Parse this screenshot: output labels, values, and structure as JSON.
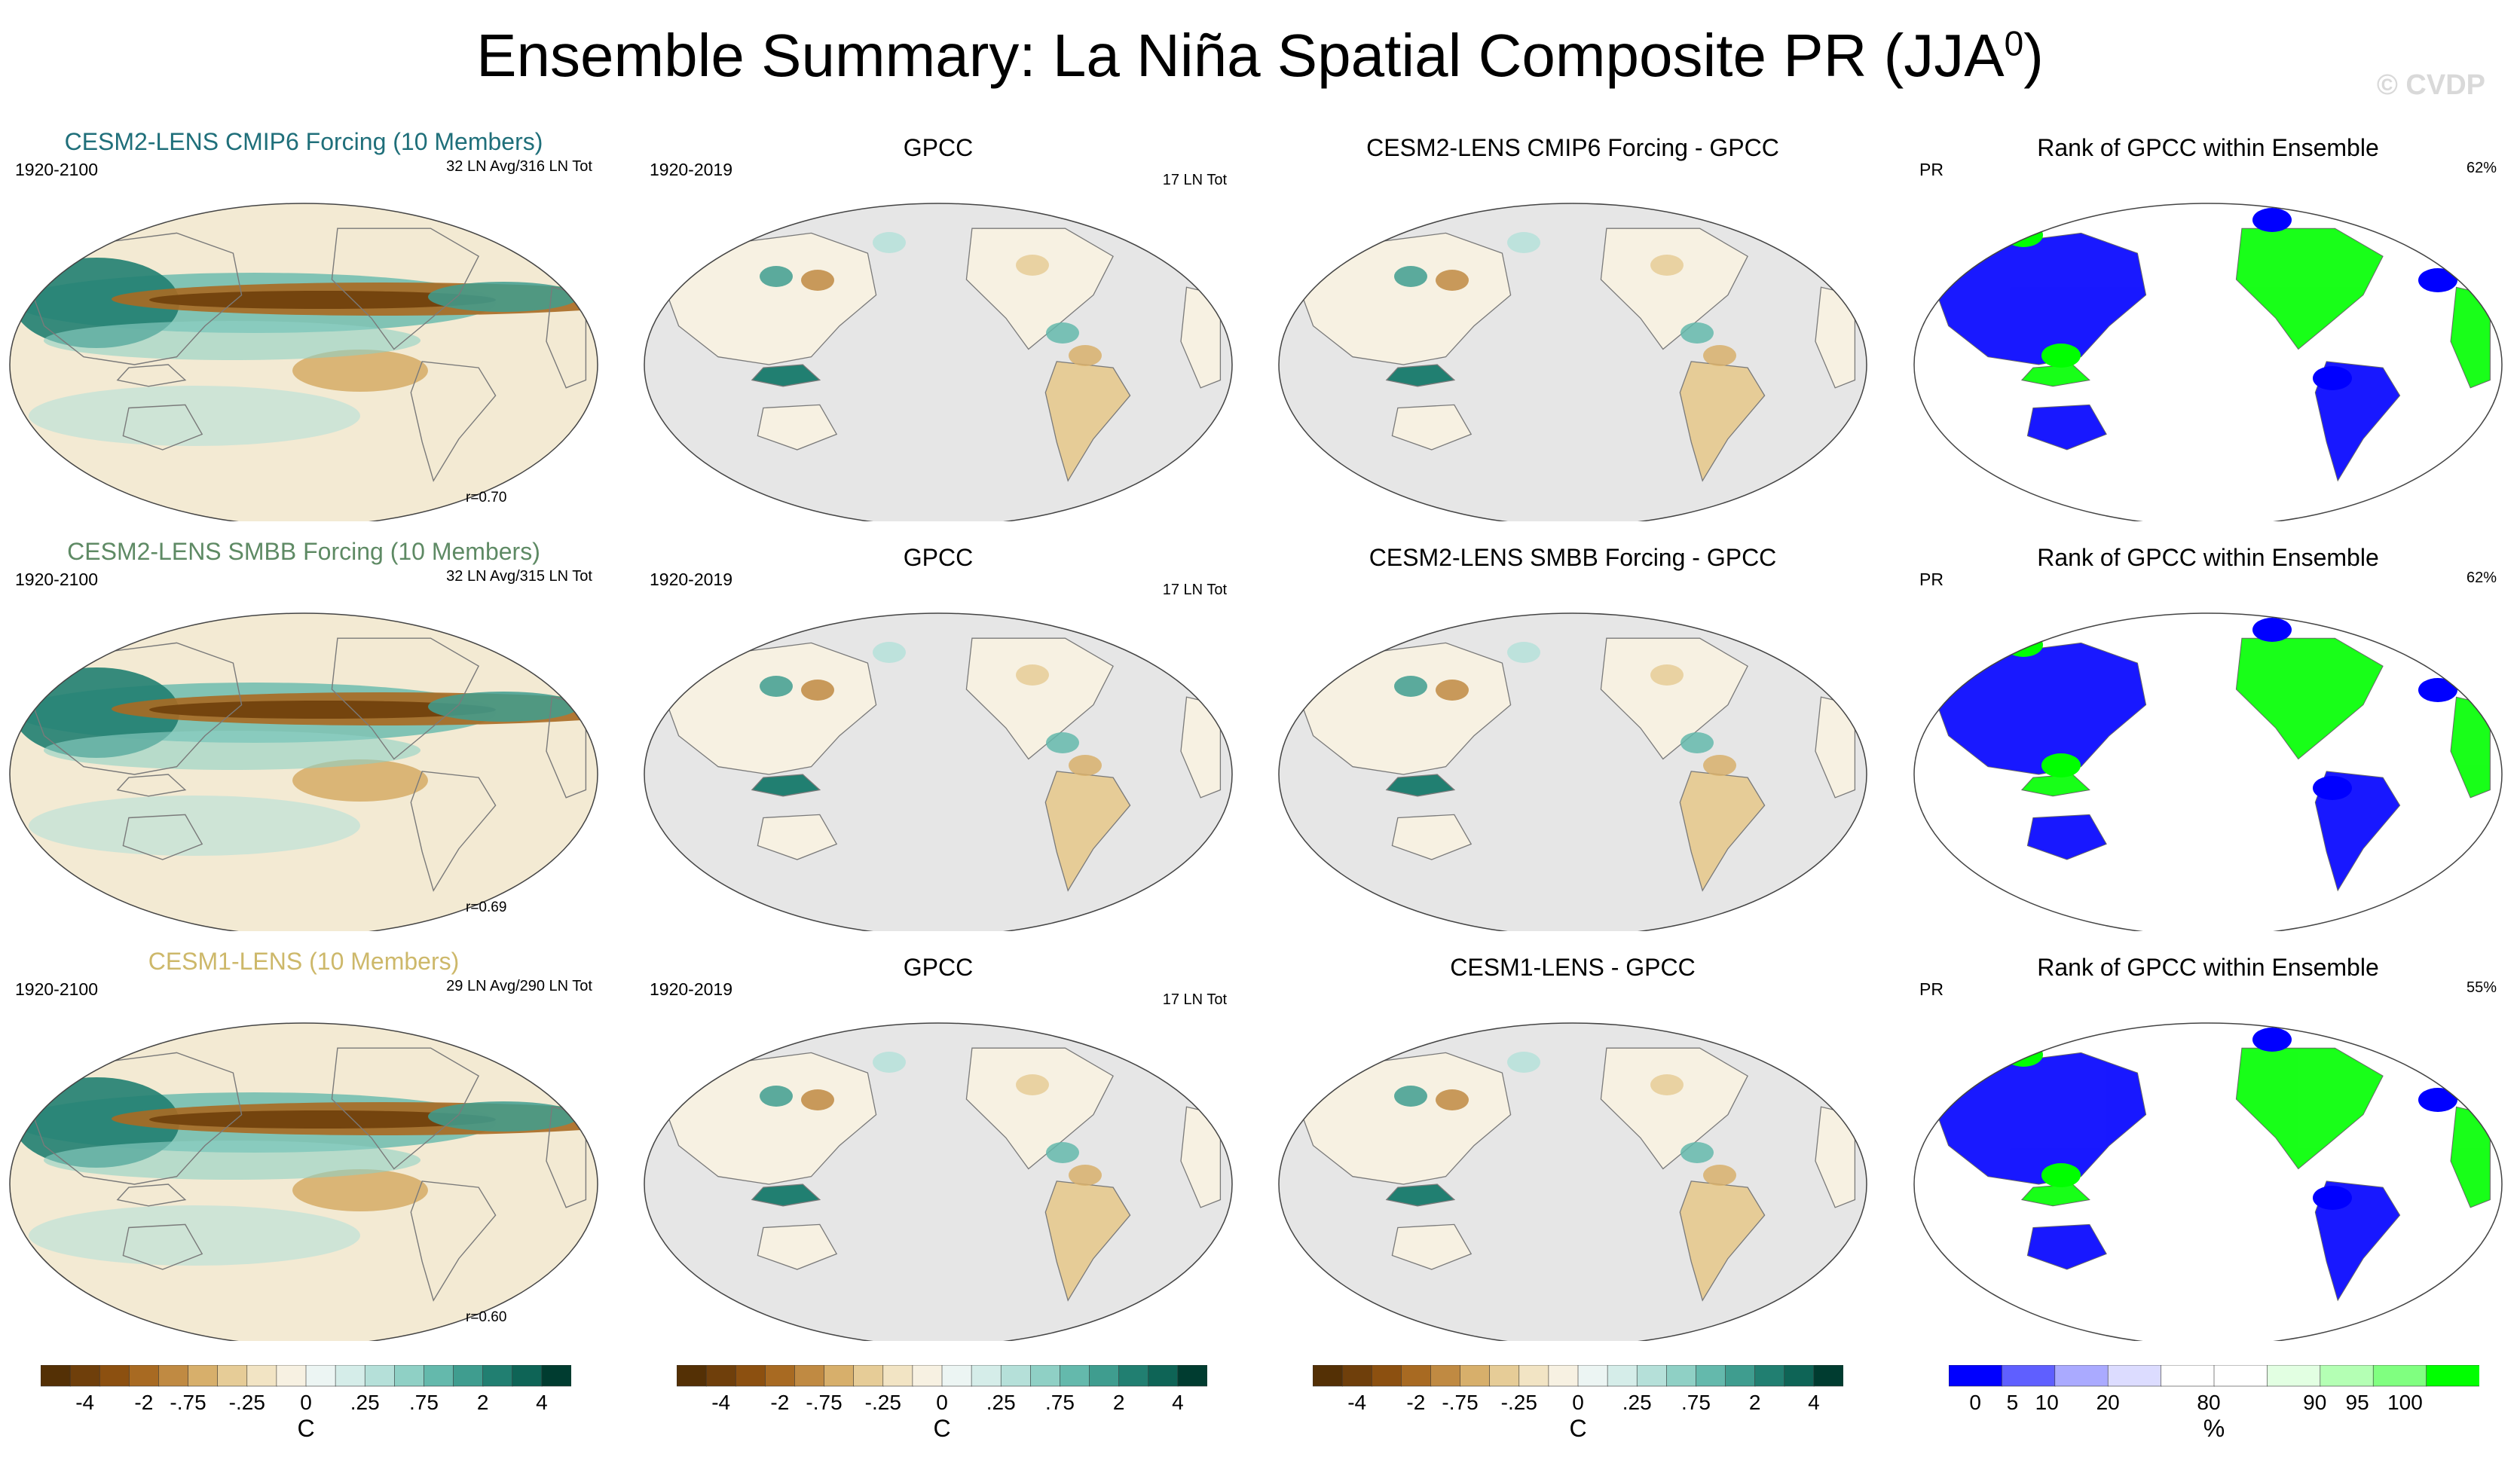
{
  "title": "Ensemble Summary: La Niña Spatial Composite PR (JJA",
  "title_sup": "0",
  "title_close": ")",
  "watermark": "© CVDP",
  "chart_data": {
    "type": "map-panels",
    "variable": "PR",
    "season": "JJA",
    "rows": [
      {
        "model": {
          "title": "CESM2-LENS CMIP6 Forcing (10 Members)",
          "title_color": "#1f6f7a",
          "years": "1920-2100",
          "info": "32 LN Avg/316 LN Tot",
          "pattern_corr": "r=0.70"
        },
        "obs": {
          "title": "GPCC",
          "years": "1920-2019",
          "info": "17 LN Tot"
        },
        "diff": {
          "title": "CESM2-LENS CMIP6 Forcing - GPCC"
        },
        "rank": {
          "title": "Rank of GPCC within Ensemble",
          "var": "PR",
          "percent": "62%"
        }
      },
      {
        "model": {
          "title": "CESM2-LENS SMBB Forcing (10 Members)",
          "title_color": "#5e8a64",
          "years": "1920-2100",
          "info": "32 LN Avg/315 LN Tot",
          "pattern_corr": "r=0.69"
        },
        "obs": {
          "title": "GPCC",
          "years": "1920-2019",
          "info": "17 LN Tot"
        },
        "diff": {
          "title": "CESM2-LENS SMBB Forcing - GPCC"
        },
        "rank": {
          "title": "Rank of GPCC within Ensemble",
          "var": "PR",
          "percent": "62%"
        }
      },
      {
        "model": {
          "title": "CESM1-LENS (10 Members)",
          "title_color": "#cdb86a",
          "years": "1920-2100",
          "info": "29 LN Avg/290 LN Tot",
          "pattern_corr": "r=0.60"
        },
        "obs": {
          "title": "GPCC",
          "years": "1920-2019",
          "info": "17 LN Tot"
        },
        "diff": {
          "title": "CESM1-LENS - GPCC"
        },
        "rank": {
          "title": "Rank of GPCC within Ensemble",
          "var": "PR",
          "percent": "55%"
        }
      }
    ],
    "colorbar_pr": {
      "unit": "C",
      "colors": [
        "#543005",
        "#6f3f0b",
        "#8c5010",
        "#a86a22",
        "#c08a42",
        "#d7af6b",
        "#e6cc97",
        "#f2e4c4",
        "#f7f1e2",
        "#ecf5f3",
        "#d5ede9",
        "#b5e0d9",
        "#8fd0c5",
        "#64b9ac",
        "#3f9d8f",
        "#217f71",
        "#0e6456",
        "#003c30"
      ],
      "ticks": [
        "-4",
        "-2",
        "-.75",
        "-.25",
        "0",
        ".25",
        ".75",
        "2",
        "4"
      ]
    },
    "colorbar_rank": {
      "unit": "%",
      "colors": [
        "#0000ff",
        "#5f5fff",
        "#aaaaff",
        "#dcdcff",
        "#ffffff",
        "#ffffff",
        "#e2ffe2",
        "#b4ffb4",
        "#80ff80",
        "#00ff00"
      ],
      "ticks": [
        "0",
        "5",
        "10",
        "20",
        "80",
        "90",
        "95",
        "100"
      ]
    }
  }
}
